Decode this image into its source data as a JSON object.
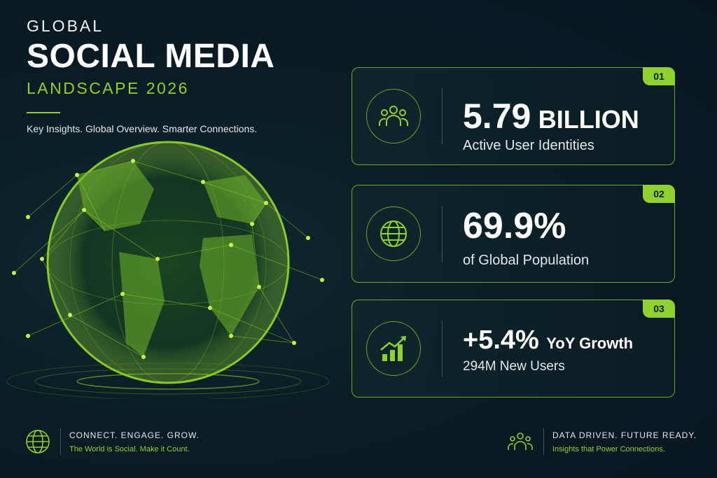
{
  "header": {
    "kicker": "GLOBAL",
    "title": "SOCIAL MEDIA",
    "subtitle": "LANDSCAPE 2026",
    "tagline": "Key Insights. Global Overview. Smarter Connections."
  },
  "cards": [
    {
      "number": "01",
      "icon": "users-group-icon",
      "big_value": "5.79",
      "big_unit": "BILLION",
      "label": "Active User Identities"
    },
    {
      "number": "02",
      "icon": "globe-icon",
      "big_value": "69.9%",
      "big_unit": "",
      "label": "of Global Population"
    },
    {
      "number": "03",
      "icon": "growth-chart-icon",
      "big_value": "+5.4%",
      "big_unit": "YoY Growth",
      "label": "294M New Users"
    }
  ],
  "footer": {
    "left": {
      "icon": "globe-icon",
      "line1": "CONNECT. ENGAGE. GROW.",
      "line2": "The World is Social. Make it Count."
    },
    "right": {
      "icon": "users-group-icon",
      "line1": "DATA DRIVEN. FUTURE READY.",
      "line2": "Insights that Power Connections."
    }
  },
  "colors": {
    "accent": "#8fd12e",
    "background": "#0a1c24",
    "text": "#ffffff"
  }
}
